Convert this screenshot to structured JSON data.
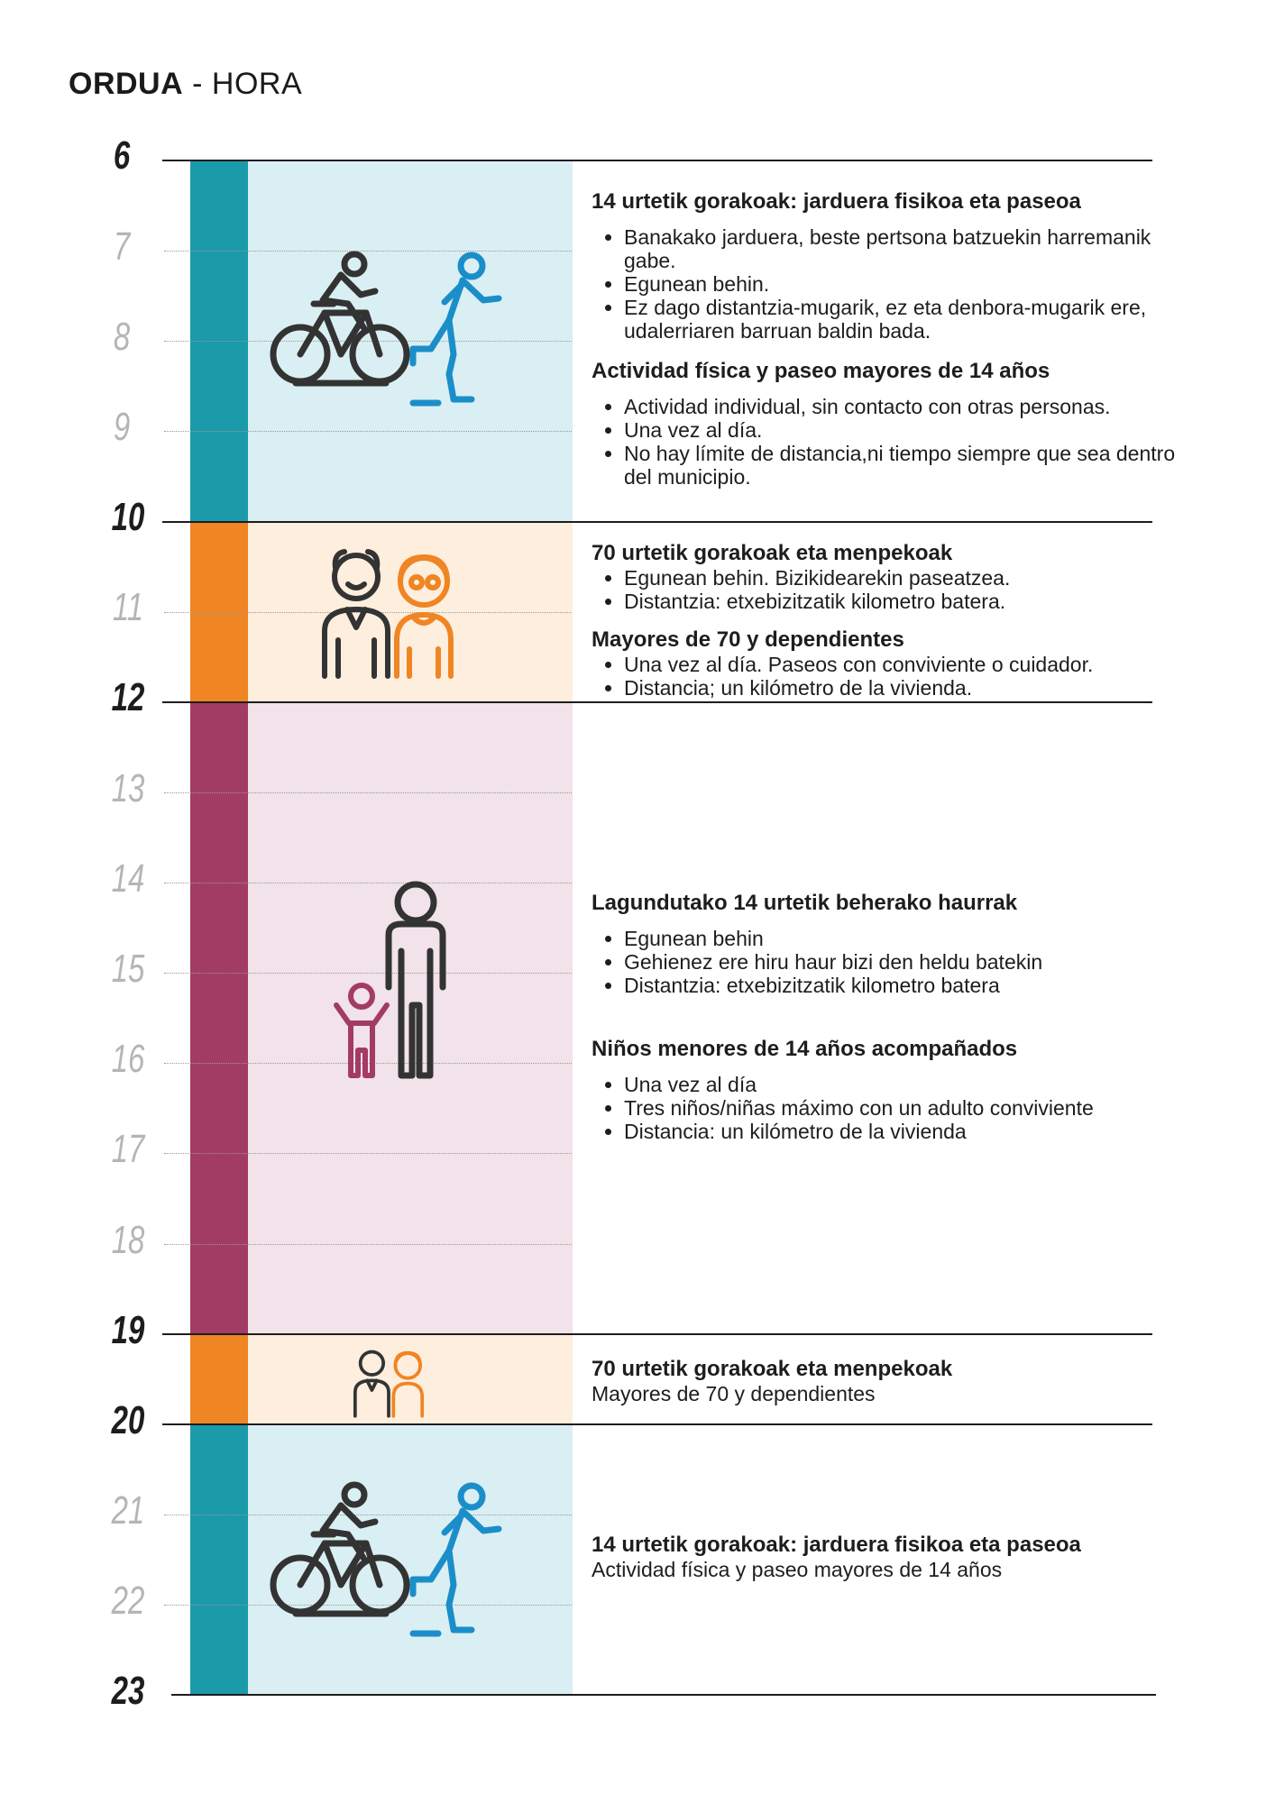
{
  "header": {
    "title_bold": "ORDUA",
    "title_rest": " - HORA"
  },
  "hours": {
    "h6": "6",
    "h7": "7",
    "h8": "8",
    "h9": "9",
    "h10": "10",
    "h11": "11",
    "h12": "12",
    "h13": "13",
    "h14": "14",
    "h15": "15",
    "h16": "16",
    "h17": "17",
    "h18": "18",
    "h19": "19",
    "h20": "20",
    "h21": "21",
    "h22": "22",
    "h23": "23"
  },
  "colors": {
    "teal": "#1b9aaa",
    "teal_light": "#d9eff3",
    "orange": "#ef8523",
    "orange_light": "#fdeede",
    "plum": "#a33c64",
    "plum_light": "#f1e3e9"
  },
  "block1": {
    "eu_title": "14 urtetik gorakoak: jarduera fisikoa eta paseoa",
    "eu_items": [
      "Banakako jarduera, beste pertsona batzuekin harremanik gabe.",
      "Egunean behin.",
      "Ez dago distantzia-mugarik, ez eta denbora-mugarik ere, udalerriaren barruan baldin bada."
    ],
    "es_title": "Actividad física y paseo mayores de 14 años",
    "es_items": [
      "Actividad individual, sin contacto con otras personas.",
      "Una vez al día.",
      "No hay límite de distancia,ni tiempo siempre que sea dentro del municipio."
    ]
  },
  "block2": {
    "eu_title": "70 urtetik gorakoak eta menpekoak",
    "eu_items": [
      "Egunean behin. Bizikidearekin paseatzea.",
      "Distantzia: etxebizitzatik kilometro batera."
    ],
    "es_title": "Mayores de 70 y dependientes",
    "es_items": [
      "Una vez al día. Paseos con conviviente o cuidador.",
      "Distancia; un kilómetro de la vivienda."
    ]
  },
  "block3": {
    "eu_title": "Lagundutako 14 urtetik beherako haurrak",
    "eu_items": [
      "Egunean behin",
      "Gehienez ere hiru haur bizi den heldu batekin",
      "Distantzia: etxebizitzatik kilometro batera"
    ],
    "es_title": "Niños menores de 14 años acompañados",
    "es_items": [
      "Una vez al día",
      "Tres niños/niñas máximo con un adulto conviviente",
      "Distancia: un kilómetro de la vivienda"
    ]
  },
  "block4": {
    "eu_title": "70 urtetik gorakoak eta menpekoak",
    "es_line": "Mayores de 70 y dependientes"
  },
  "block5": {
    "eu_title": "14 urtetik gorakoak: jarduera fisikoa eta paseoa",
    "es_line": "Actividad física y paseo mayores de 14 años"
  }
}
